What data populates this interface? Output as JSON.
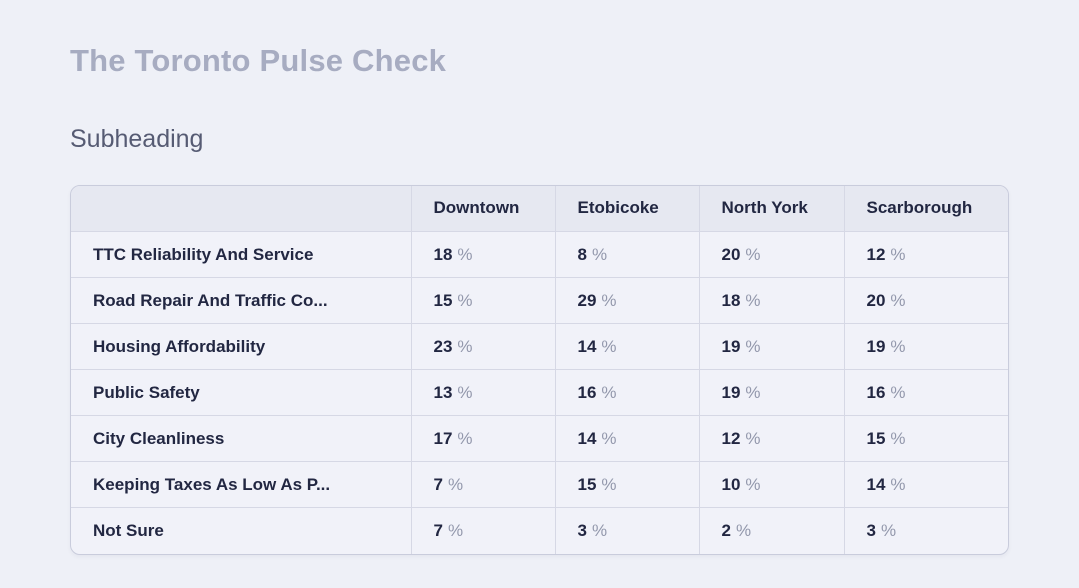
{
  "header": {
    "title": "The Toronto Pulse Check",
    "subheading": "Subheading"
  },
  "table": {
    "corner_label": "",
    "columns": [
      "Downtown",
      "Etobicoke",
      "North York",
      "Scarborough"
    ],
    "unit": "%",
    "rows": [
      {
        "label": "TTC Reliability And Service",
        "values": [
          18,
          8,
          20,
          12
        ]
      },
      {
        "label": "Road Repair And Traffic Co...",
        "values": [
          15,
          29,
          18,
          20
        ]
      },
      {
        "label": "Housing Affordability",
        "values": [
          23,
          14,
          19,
          19
        ]
      },
      {
        "label": "Public Safety",
        "values": [
          13,
          16,
          19,
          16
        ]
      },
      {
        "label": "City Cleanliness",
        "values": [
          17,
          14,
          12,
          15
        ]
      },
      {
        "label": "Keeping Taxes As Low As P...",
        "values": [
          7,
          15,
          10,
          14
        ]
      },
      {
        "label": "Not Sure",
        "values": [
          7,
          3,
          2,
          3
        ]
      }
    ]
  },
  "chart_data": {
    "type": "table",
    "title": "The Toronto Pulse Check",
    "subtitle": "Subheading",
    "columns": [
      "Downtown",
      "Etobicoke",
      "North York",
      "Scarborough"
    ],
    "row_labels": [
      "TTC Reliability And Service",
      "Road Repair And Traffic Co...",
      "Housing Affordability",
      "Public Safety",
      "City Cleanliness",
      "Keeping Taxes As Low As P...",
      "Not Sure"
    ],
    "values_percent": [
      [
        18,
        8,
        20,
        12
      ],
      [
        15,
        29,
        18,
        20
      ],
      [
        23,
        14,
        19,
        19
      ],
      [
        13,
        16,
        19,
        16
      ],
      [
        17,
        14,
        12,
        15
      ],
      [
        7,
        15,
        10,
        14
      ],
      [
        7,
        3,
        2,
        3
      ]
    ],
    "unit": "%"
  },
  "colors": {
    "page_background": "#eef0f7",
    "table_body_background": "#f1f2f9",
    "table_header_background": "#e6e8f1",
    "table_border": "#c9ccdc",
    "cell_divider": "#d6d8e5",
    "title_text": "#a7acc1",
    "subheading_text": "#565b73",
    "cell_text": "#222742",
    "unit_text": "#9398ac"
  }
}
